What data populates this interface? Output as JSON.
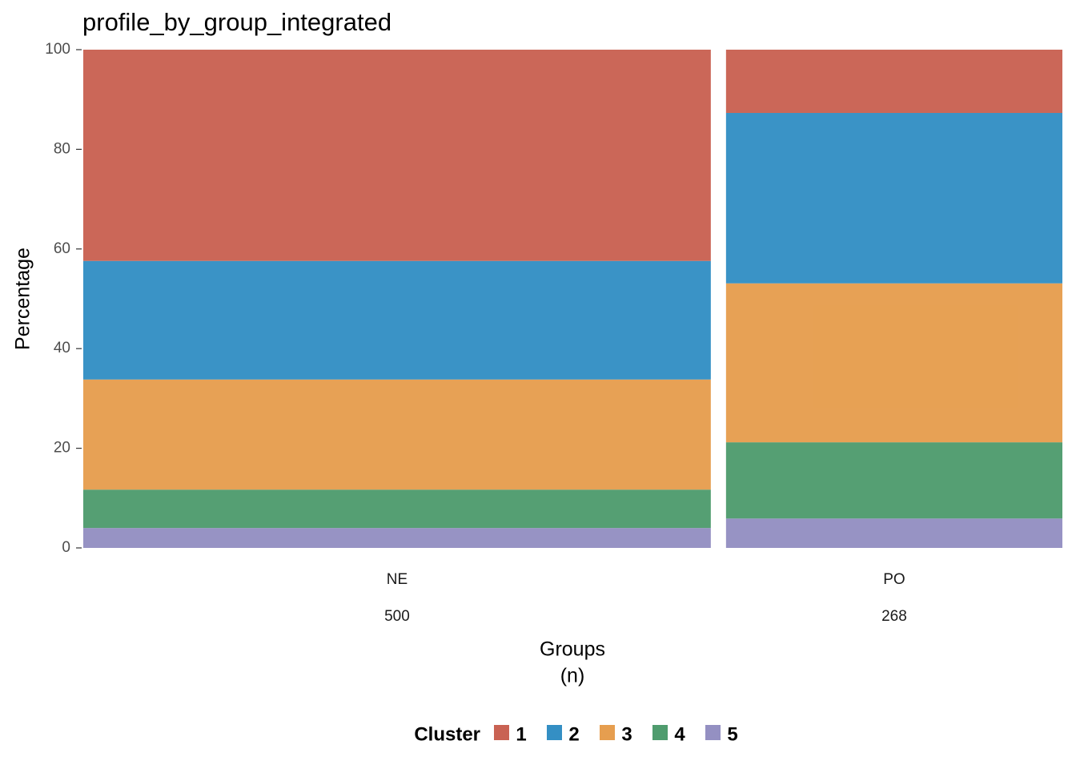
{
  "chart_data": {
    "type": "bar",
    "stacked": true,
    "title": "profile_by_group_integrated",
    "ylabel": "Percentage",
    "xlabel": [
      "Groups",
      "(n)"
    ],
    "legend_title": "Cluster",
    "legend_position": "bottom",
    "categories": [
      "NE",
      "PO"
    ],
    "n": [
      500,
      268
    ],
    "series": [
      {
        "name": "1",
        "color": "#c96253",
        "values": [
          42.4,
          12.7
        ]
      },
      {
        "name": "2",
        "color": "#348fc4",
        "values": [
          23.8,
          34.2
        ]
      },
      {
        "name": "3",
        "color": "#e69e4f",
        "values": [
          22.1,
          31.9
        ]
      },
      {
        "name": "4",
        "color": "#4f9c6e",
        "values": [
          7.7,
          15.3
        ]
      },
      {
        "name": "5",
        "color": "#9490c2",
        "values": [
          4.0,
          5.9
        ]
      }
    ],
    "ylim": [
      0,
      100
    ],
    "yticks": [
      0,
      20,
      40,
      60,
      80,
      100
    ],
    "grid": false
  }
}
